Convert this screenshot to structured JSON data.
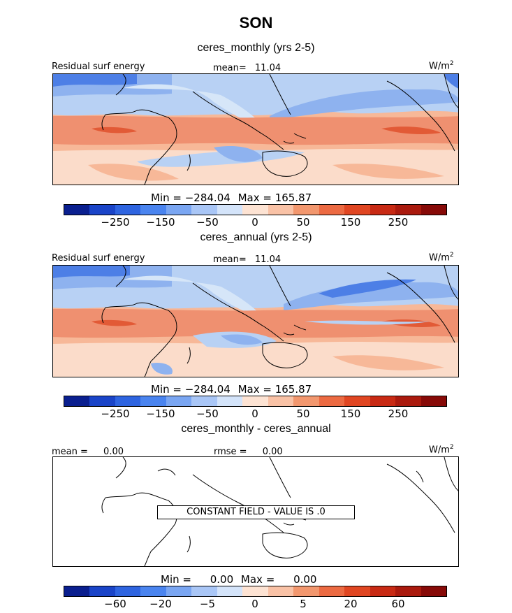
{
  "season": "SON",
  "units": "W/m",
  "units_exp": "2",
  "panels": [
    {
      "subtitle": "ceres_monthly (yrs 2-5)",
      "left_label": "Residual surf energy",
      "mean_label": "mean=",
      "mean_value": "11.04",
      "min_label": "Min =",
      "min_value": "−284.04",
      "max_label": "Max =",
      "max_value": "165.87",
      "ticks": [
        "−250",
        "−150",
        "−50",
        "0",
        "50",
        "150",
        "250"
      ]
    },
    {
      "subtitle": "ceres_annual (yrs 2-5)",
      "left_label": "Residual surf energy",
      "mean_label": "mean=",
      "mean_value": "11.04",
      "min_label": "Min =",
      "min_value": "−284.04",
      "max_label": "Max =",
      "max_value": "165.87",
      "ticks": [
        "−250",
        "−150",
        "−50",
        "0",
        "50",
        "150",
        "250"
      ]
    },
    {
      "subtitle": "ceres_monthly - ceres_annual",
      "left_label": "mean =",
      "left_value": "0.00",
      "rmse_label": "rmse =",
      "rmse_value": "0.00",
      "constant_text": "CONSTANT FIELD - VALUE IS .0",
      "min_label": "Min =",
      "min_value": "0.00",
      "max_label": "Max =",
      "max_value": "0.00",
      "ticks": [
        "−60",
        "−20",
        "−5",
        "0",
        "5",
        "20",
        "60"
      ]
    }
  ],
  "colorbar_colors": [
    "#0a1f8f",
    "#1a44c8",
    "#2e64e0",
    "#4a84ef",
    "#7aa6f2",
    "#a9c6f6",
    "#d4e4fa",
    "#fde3d3",
    "#f9c2a6",
    "#f2976e",
    "#ec6a42",
    "#e04622",
    "#c82a14",
    "#aa1a0e",
    "#870a08"
  ],
  "field_colors": {
    "land_cool": "#d6e6f8",
    "land_warm": "#fbdcca",
    "ocean_mid": "#f7b898",
    "ocean_warm": "#ef9070",
    "hot": "#e25a36",
    "cold_light": "#b8d1f4",
    "cold_mid": "#8eb2ef",
    "cold_deep": "#4d7fe6"
  }
}
